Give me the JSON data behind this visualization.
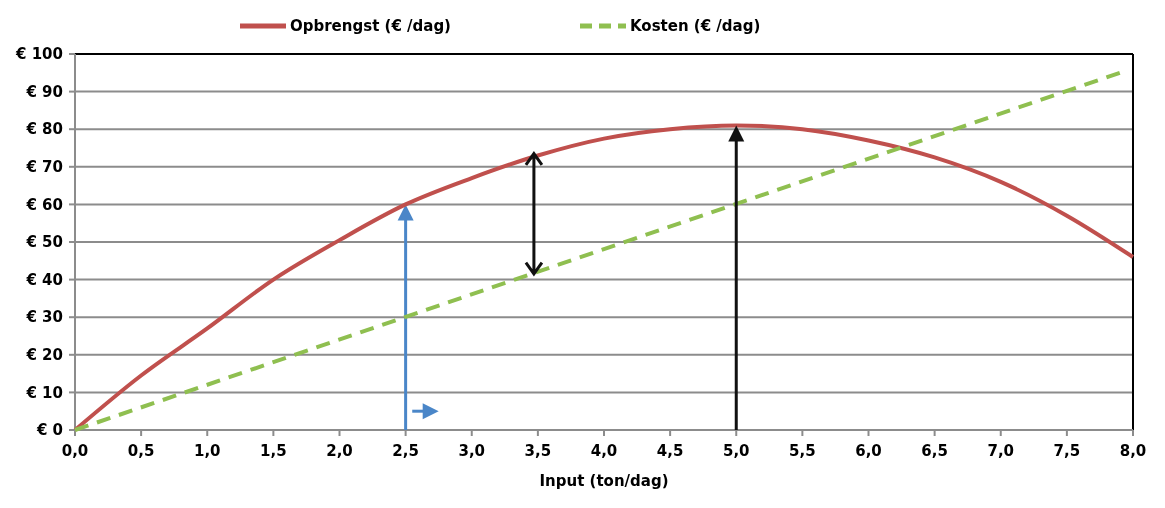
{
  "chart_data": {
    "type": "line",
    "xlabel": "Input (ton/dag)",
    "xlim": [
      0,
      8
    ],
    "xticks": [
      {
        "value": 0,
        "label": "0,0"
      },
      {
        "value": 0.5,
        "label": "0,5"
      },
      {
        "value": 1,
        "label": "1,0"
      },
      {
        "value": 1.5,
        "label": "1,5"
      },
      {
        "value": 2,
        "label": "2,0"
      },
      {
        "value": 2.5,
        "label": "2,5"
      },
      {
        "value": 3,
        "label": "3,0"
      },
      {
        "value": 3.5,
        "label": "3,5"
      },
      {
        "value": 4,
        "label": "4,0"
      },
      {
        "value": 4.5,
        "label": "4,5"
      },
      {
        "value": 5,
        "label": "5,0"
      },
      {
        "value": 5.5,
        "label": "5,5"
      },
      {
        "value": 6,
        "label": "6,0"
      },
      {
        "value": 6.5,
        "label": "6,5"
      },
      {
        "value": 7,
        "label": "7,0"
      },
      {
        "value": 7.5,
        "label": "7,5"
      },
      {
        "value": 8,
        "label": "8,0"
      }
    ],
    "ylim": [
      0,
      100
    ],
    "yticks": [
      {
        "value": 0,
        "label": "€ 0"
      },
      {
        "value": 10,
        "label": "€ 10"
      },
      {
        "value": 20,
        "label": "€ 20"
      },
      {
        "value": 30,
        "label": "€ 30"
      },
      {
        "value": 40,
        "label": "€ 40"
      },
      {
        "value": 50,
        "label": "€ 50"
      },
      {
        "value": 60,
        "label": "€ 60"
      },
      {
        "value": 70,
        "label": "€ 70"
      },
      {
        "value": 80,
        "label": "€ 80"
      },
      {
        "value": 90,
        "label": "€ 90"
      },
      {
        "value": 100,
        "label": "€ 100"
      }
    ],
    "grid": "y",
    "legend": "top",
    "marker": "none",
    "series": [
      {
        "name": "Opbrengst (€ /dag)",
        "color": "#c0504d",
        "line_style": "solid",
        "x": [
          0,
          0.5,
          1,
          1.5,
          2,
          2.5,
          3,
          3.5,
          4,
          4.5,
          5,
          5.5,
          6,
          6.5,
          7,
          7.5,
          8
        ],
        "values": [
          0,
          14.5,
          27,
          40,
          50.5,
          60,
          67,
          73,
          77.5,
          80,
          81,
          80,
          77,
          72.5,
          66,
          57,
          46
        ]
      },
      {
        "name": "Kosten (€ /dag)",
        "color": "#8fbf50",
        "line_style": "dashed",
        "x": [
          0,
          7.9
        ],
        "values": [
          0,
          95
        ]
      }
    ]
  }
}
